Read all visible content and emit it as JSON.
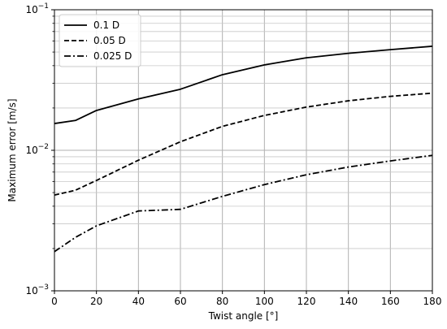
{
  "chart_data": {
    "type": "line",
    "xlabel": "Twist angle [°]",
    "ylabel": "Maximum error [m/s]",
    "xlim": [
      0,
      180
    ],
    "ylim": [
      0.001,
      0.1
    ],
    "yscale": "log",
    "grid": true,
    "legend_position": "top-left",
    "x_ticks": [
      0,
      20,
      40,
      60,
      80,
      100,
      120,
      140,
      160,
      180
    ],
    "y_major_ticks": [
      {
        "value": 0.001,
        "base": "10",
        "exp": "−3"
      },
      {
        "value": 0.01,
        "base": "10",
        "exp": "−2"
      },
      {
        "value": 0.1,
        "base": "10",
        "exp": "−1"
      }
    ],
    "series": [
      {
        "name": "0.1 D",
        "dash": "solid",
        "x": [
          0,
          10,
          20,
          40,
          60,
          80,
          100,
          120,
          140,
          160,
          180
        ],
        "y": [
          0.0155,
          0.0163,
          0.0192,
          0.0232,
          0.0272,
          0.0345,
          0.0405,
          0.0455,
          0.049,
          0.052,
          0.055
        ]
      },
      {
        "name": "0.05 D",
        "dash": "dashed",
        "x": [
          0,
          10,
          20,
          40,
          60,
          80,
          100,
          120,
          140,
          160,
          180
        ],
        "y": [
          0.0048,
          0.0052,
          0.0061,
          0.0085,
          0.0115,
          0.0148,
          0.0177,
          0.0203,
          0.0225,
          0.0242,
          0.0255
        ]
      },
      {
        "name": "0.025 D",
        "dash": "dashdot",
        "x": [
          0,
          10,
          20,
          40,
          60,
          80,
          100,
          120,
          140,
          160,
          180
        ],
        "y": [
          0.0019,
          0.0024,
          0.0029,
          0.0037,
          0.0038,
          0.0047,
          0.0057,
          0.0067,
          0.0076,
          0.0084,
          0.0092
        ]
      }
    ]
  }
}
